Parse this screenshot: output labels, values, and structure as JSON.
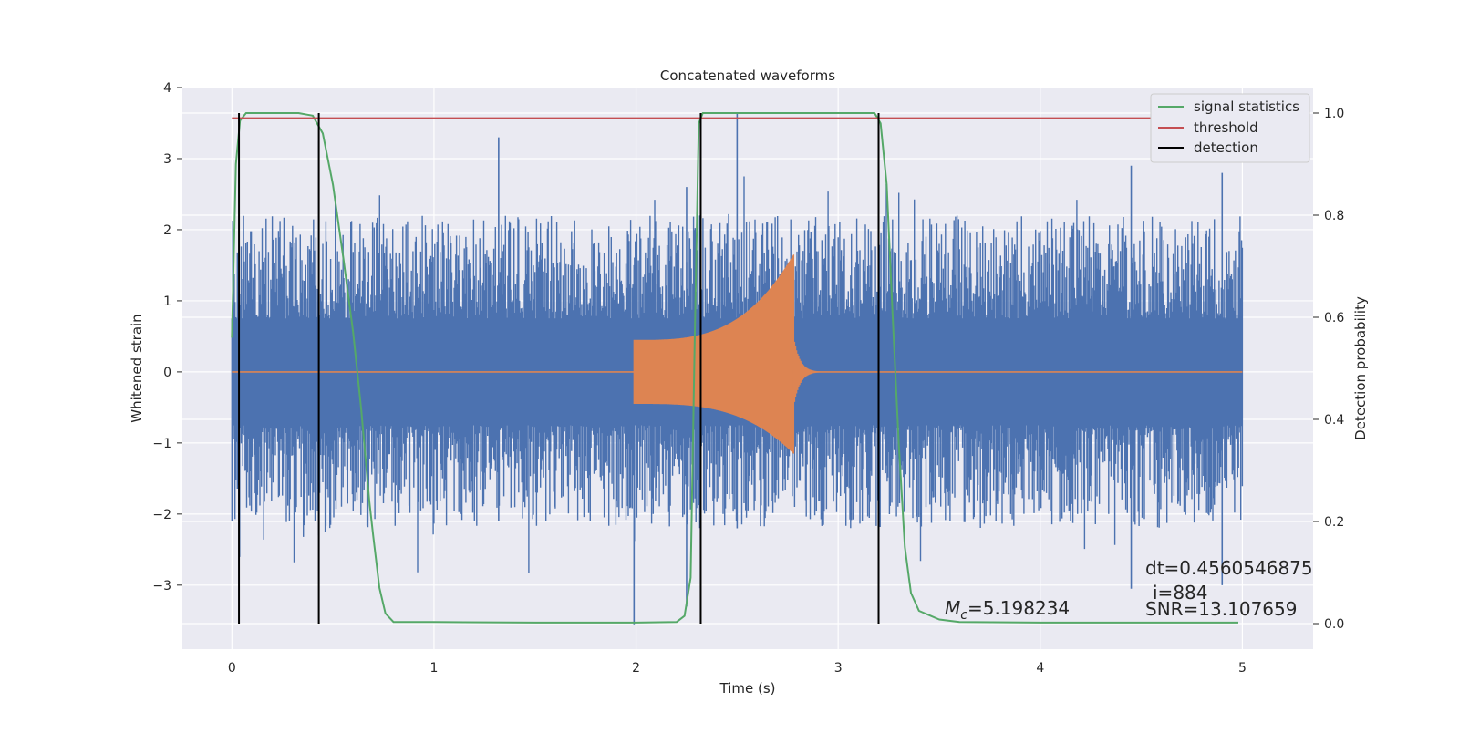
{
  "chart_data": {
    "type": "line",
    "title": "Concatenated waveforms",
    "xlabel": "Time (s)",
    "ylabel": "Whitened strain",
    "ylabel_right": "Detection probability",
    "xlim": [
      -0.245,
      5.35
    ],
    "ylim": [
      -3.9,
      4.0
    ],
    "ylim_right": [
      -0.05,
      1.05
    ],
    "x_ticks": [
      0,
      1,
      2,
      3,
      4,
      5
    ],
    "y_ticks": [
      -3,
      -2,
      -1,
      0,
      1,
      2,
      3,
      4
    ],
    "y_ticks_right": [
      0.0,
      0.2,
      0.4,
      0.6,
      0.8,
      1.0
    ],
    "grid": true,
    "legend_position": "top-right",
    "colors": {
      "strain": "#4c72b0",
      "template": "#dd8452",
      "signal_statistics": "#55a868",
      "threshold": "#c44e52",
      "detection": "#000000",
      "background": "#eaeaf2",
      "grid": "#ffffff"
    },
    "series": [
      {
        "name": "signal statistics",
        "axis": "right",
        "color": "#55a868",
        "points": [
          [
            0,
            0.56
          ],
          [
            0.02,
            0.9
          ],
          [
            0.04,
            0.985
          ],
          [
            0.07,
            1.0
          ],
          [
            0.33,
            1.0
          ],
          [
            0.4,
            0.995
          ],
          [
            0.45,
            0.96
          ],
          [
            0.5,
            0.86
          ],
          [
            0.55,
            0.72
          ],
          [
            0.6,
            0.57
          ],
          [
            0.64,
            0.42
          ],
          [
            0.68,
            0.24
          ],
          [
            0.7,
            0.17
          ],
          [
            0.73,
            0.07
          ],
          [
            0.76,
            0.02
          ],
          [
            0.8,
            0.003
          ],
          [
            1.0,
            0.003
          ],
          [
            1.5,
            0.002
          ],
          [
            2.0,
            0.002
          ],
          [
            2.2,
            0.003
          ],
          [
            2.24,
            0.015
          ],
          [
            2.27,
            0.09
          ],
          [
            2.29,
            0.55
          ],
          [
            2.31,
            0.98
          ],
          [
            2.33,
            1.0
          ],
          [
            3.18,
            1.0
          ],
          [
            3.21,
            0.98
          ],
          [
            3.24,
            0.86
          ],
          [
            3.27,
            0.6
          ],
          [
            3.3,
            0.35
          ],
          [
            3.33,
            0.15
          ],
          [
            3.36,
            0.06
          ],
          [
            3.4,
            0.025
          ],
          [
            3.5,
            0.008
          ],
          [
            3.6,
            0.003
          ],
          [
            4.0,
            0.002
          ],
          [
            4.5,
            0.002
          ],
          [
            4.98,
            0.002
          ]
        ]
      },
      {
        "name": "threshold",
        "axis": "right",
        "color": "#c44e52",
        "value": 0.99,
        "x": [
          0,
          4.98
        ]
      },
      {
        "name": "detection",
        "axis": "right",
        "color": "#000000",
        "x": [
          0.035,
          0.43,
          2.32,
          3.2
        ],
        "range": [
          0.0,
          1.0
        ]
      }
    ],
    "strain_band": {
      "x_range": [
        0,
        5
      ],
      "core_amplitude": 0.75,
      "typical_peak": 2.2,
      "max_up": 3.65,
      "max_down": -3.55
    },
    "template_chirp": {
      "x_start": 1.99,
      "x_merger": 2.78,
      "x_end": 5,
      "start_amplitude": 0.45,
      "peak_amplitude": 1.65,
      "peak_min": -1.15
    },
    "legend": [
      "signal statistics",
      "threshold",
      "detection"
    ],
    "annotations": {
      "dt": "dt=0.4560546875",
      "i": "i=884",
      "snr": "SNR=13.107659",
      "mc_symbol": "M",
      "mc_sub": "c",
      "mc_value": "=5.198234"
    }
  }
}
